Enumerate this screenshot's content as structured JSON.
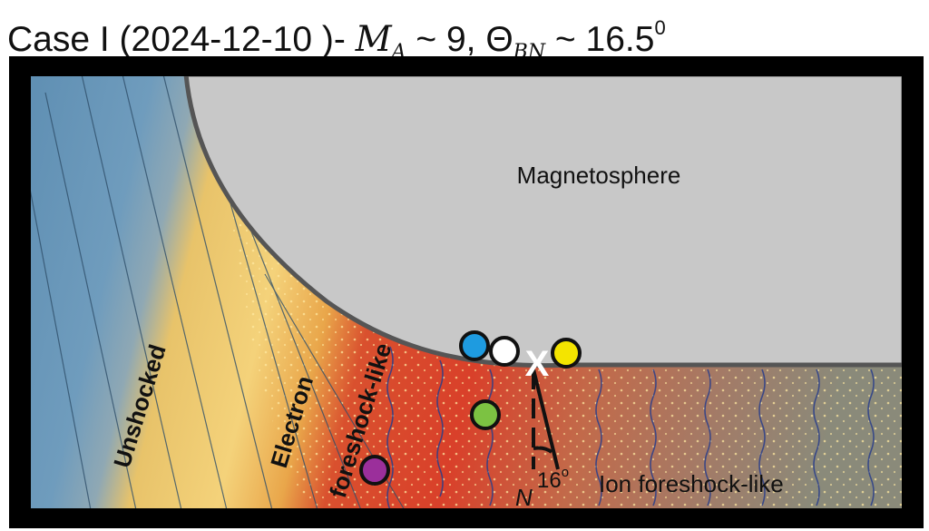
{
  "title": {
    "prefix": "Case I  (2024-12-10 )- ",
    "ma_symbol": "M",
    "ma_sub": "A",
    "ma_value": " ~ 9, ",
    "theta_symbol": "Θ",
    "theta_sub": "BN",
    "theta_value": " ~ 16.5",
    "theta_sup": "0"
  },
  "regions": {
    "magnetosphere": "Magnetosphere",
    "unshocked": "Unshocked",
    "electron_line1": "Electron",
    "electron_line2": "foreshock-like",
    "ion": "Ion foreshock-like"
  },
  "annotations": {
    "angle_value": "16",
    "angle_unit": "o",
    "normal_label": "N",
    "marker": "X"
  },
  "spacecraft": [
    {
      "color": "#1e9be0"
    },
    {
      "color": "#ffffff"
    },
    {
      "color": "#f4e400"
    },
    {
      "color": "#7cc242"
    },
    {
      "color": "#9b2f9b"
    }
  ],
  "colors": {
    "unshocked": "#6f9cbd",
    "electron": "#f2cc6a",
    "ion": "#d9472a",
    "magnetosphere": "#c8c8c8",
    "frame": "#000000"
  }
}
